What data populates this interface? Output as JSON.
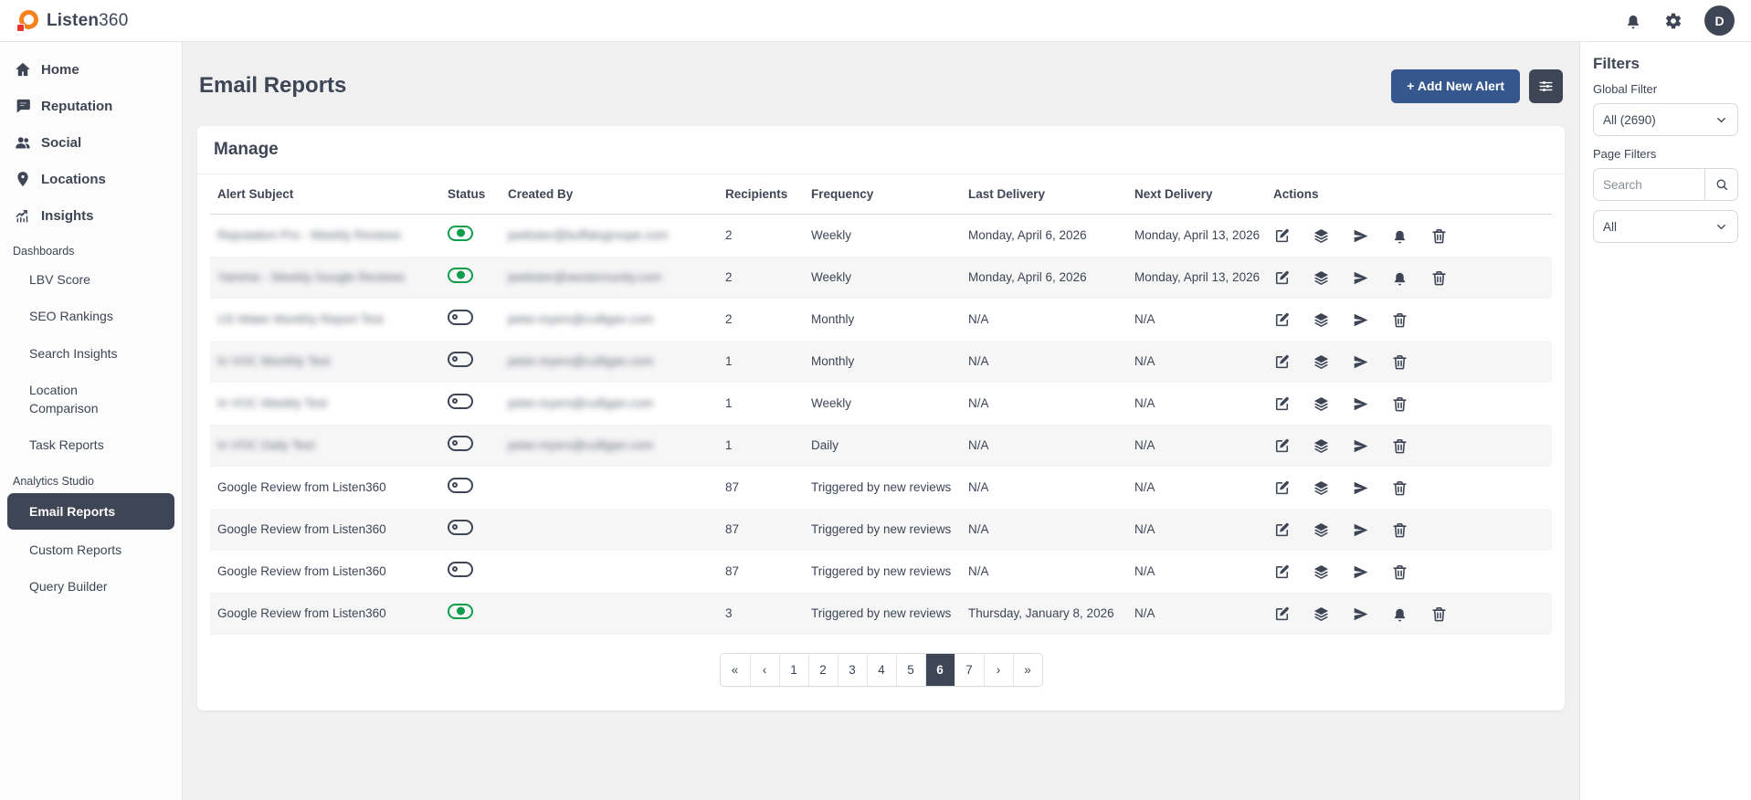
{
  "brand": {
    "name_bold": "Listen",
    "name_suffix": "360"
  },
  "topbar": {
    "avatar_initial": "D"
  },
  "sidebar": {
    "primary": [
      {
        "label": "Home",
        "icon": "home"
      },
      {
        "label": "Reputation",
        "icon": "reputation"
      },
      {
        "label": "Social",
        "icon": "social"
      },
      {
        "label": "Locations",
        "icon": "locations"
      },
      {
        "label": "Insights",
        "icon": "insights"
      }
    ],
    "sections": [
      {
        "label": "Dashboards",
        "items": [
          {
            "label": "LBV Score"
          },
          {
            "label": "SEO Rankings"
          },
          {
            "label": "Search Insights"
          },
          {
            "label": "Location Comparison"
          },
          {
            "label": "Task Reports"
          }
        ]
      },
      {
        "label": "Analytics Studio",
        "items": [
          {
            "label": "Email Reports",
            "active": true
          },
          {
            "label": "Custom Reports"
          },
          {
            "label": "Query Builder"
          }
        ]
      }
    ]
  },
  "header": {
    "title": "Email Reports",
    "add_alert_label": "+ Add New Alert"
  },
  "manage": {
    "title": "Manage"
  },
  "table": {
    "columns": [
      "Alert Subject",
      "Status",
      "Created By",
      "Recipients",
      "Frequency",
      "Last Delivery",
      "Next Delivery",
      "Actions"
    ],
    "rows": [
      {
        "subject": "Reputation Pro - Weekly Reviews",
        "subject_blurred": true,
        "status": "on",
        "created_by": "jwebster@buffalogroupe.com",
        "created_by_blurred": true,
        "recipients": 2,
        "frequency": "Weekly",
        "last_delivery": "Monday, April 6, 2026",
        "next_delivery": "Monday, April 13, 2026",
        "actions": [
          "edit",
          "layers",
          "send",
          "bell",
          "trash"
        ]
      },
      {
        "subject": "Yaminis - Weekly Google Reviews",
        "subject_blurred": true,
        "status": "on",
        "created_by": "jwebster@westernunity.com",
        "created_by_blurred": true,
        "recipients": 2,
        "frequency": "Weekly",
        "last_delivery": "Monday, April 6, 2026",
        "next_delivery": "Monday, April 13, 2026",
        "actions": [
          "edit",
          "layers",
          "send",
          "bell",
          "trash"
        ]
      },
      {
        "subject": "US Water Monthly Report Test",
        "subject_blurred": true,
        "status": "off",
        "created_by": "peter.myers@culligan.com",
        "created_by_blurred": true,
        "recipients": 2,
        "frequency": "Monthly",
        "last_delivery": "N/A",
        "next_delivery": "N/A",
        "actions": [
          "edit",
          "layers",
          "send",
          "trash"
        ]
      },
      {
        "subject": "In VOC Monthly Test",
        "subject_blurred": true,
        "status": "off",
        "created_by": "peter.myers@culligan.com",
        "created_by_blurred": true,
        "recipients": 1,
        "frequency": "Monthly",
        "last_delivery": "N/A",
        "next_delivery": "N/A",
        "actions": [
          "edit",
          "layers",
          "send",
          "trash"
        ]
      },
      {
        "subject": "In VOC Weekly Test",
        "subject_blurred": true,
        "status": "off",
        "created_by": "peter.myers@culligan.com",
        "created_by_blurred": true,
        "recipients": 1,
        "frequency": "Weekly",
        "last_delivery": "N/A",
        "next_delivery": "N/A",
        "actions": [
          "edit",
          "layers",
          "send",
          "trash"
        ]
      },
      {
        "subject": "In VOC Daily Test",
        "subject_blurred": true,
        "status": "off",
        "created_by": "peter.myers@culligan.com",
        "created_by_blurred": true,
        "recipients": 1,
        "frequency": "Daily",
        "last_delivery": "N/A",
        "next_delivery": "N/A",
        "actions": [
          "edit",
          "layers",
          "send",
          "trash"
        ]
      },
      {
        "subject": "Google Review from Listen360",
        "subject_blurred": false,
        "status": "off",
        "created_by": "",
        "created_by_blurred": false,
        "recipients": 87,
        "frequency": "Triggered by new reviews",
        "last_delivery": "N/A",
        "next_delivery": "N/A",
        "actions": [
          "edit",
          "layers",
          "send",
          "trash"
        ]
      },
      {
        "subject": "Google Review from Listen360",
        "subject_blurred": false,
        "status": "off",
        "created_by": "",
        "created_by_blurred": false,
        "recipients": 87,
        "frequency": "Triggered by new reviews",
        "last_delivery": "N/A",
        "next_delivery": "N/A",
        "actions": [
          "edit",
          "layers",
          "send",
          "trash"
        ]
      },
      {
        "subject": "Google Review from Listen360",
        "subject_blurred": false,
        "status": "off",
        "created_by": "",
        "created_by_blurred": false,
        "recipients": 87,
        "frequency": "Triggered by new reviews",
        "last_delivery": "N/A",
        "next_delivery": "N/A",
        "actions": [
          "edit",
          "layers",
          "send",
          "trash"
        ]
      },
      {
        "subject": "Google Review from Listen360",
        "subject_blurred": false,
        "status": "on",
        "created_by": "",
        "created_by_blurred": false,
        "recipients": 3,
        "frequency": "Triggered by new reviews",
        "last_delivery": "Thursday, January 8, 2026",
        "next_delivery": "N/A",
        "actions": [
          "edit",
          "layers",
          "send",
          "bell",
          "trash"
        ]
      }
    ]
  },
  "pagination": {
    "pages": [
      "«",
      "‹",
      "1",
      "2",
      "3",
      "4",
      "5",
      "6",
      "7",
      "›",
      "»"
    ],
    "active": "6"
  },
  "filters": {
    "title": "Filters",
    "global_filter_label": "Global Filter",
    "global_filter_value": "All (2690)",
    "page_filters_label": "Page Filters",
    "search_placeholder": "Search",
    "page_filter_value": "All"
  },
  "colors": {
    "accent_blue": "#35578e",
    "slate": "#3e4555",
    "toggle_green": "#0f9d4a",
    "stripe": "#f6f6f7"
  }
}
